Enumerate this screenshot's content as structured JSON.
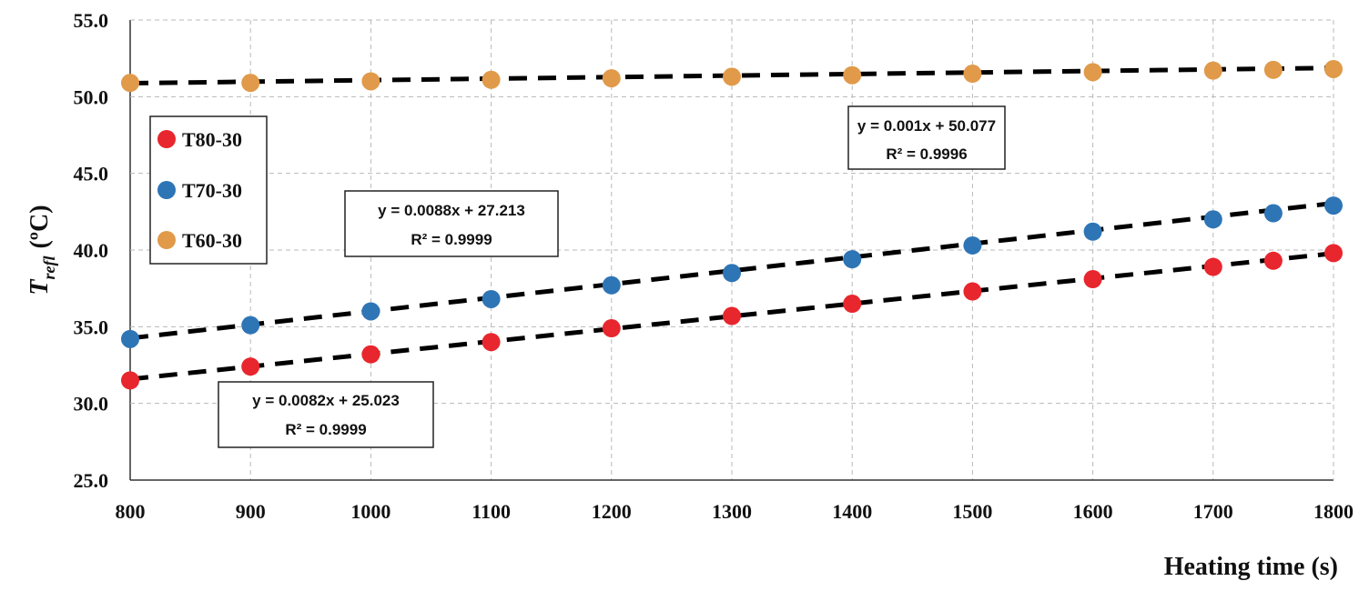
{
  "chart_data": {
    "type": "scatter",
    "xlabel": "Heating time (s)",
    "ylabel": {
      "main": "T",
      "subscript": "refl",
      "unit": "(ºC)"
    },
    "xlim": [
      800,
      1800
    ],
    "ylim": [
      25,
      55
    ],
    "x_ticks": [
      "800",
      "900",
      "1000",
      "1100",
      "1200",
      "1300",
      "1400",
      "1500",
      "1600",
      "1700",
      "1800"
    ],
    "y_ticks": [
      "25.0",
      "30.0",
      "35.0",
      "40.0",
      "45.0",
      "50.0",
      "55.0"
    ],
    "grid": true,
    "legend_position": "left",
    "series": [
      {
        "name": "T80-30",
        "color": "#e8262d",
        "x": [
          800,
          900,
          1000,
          1100,
          1200,
          1300,
          1400,
          1500,
          1600,
          1700,
          1750,
          1800
        ],
        "y": [
          31.5,
          32.4,
          33.2,
          34.0,
          34.9,
          35.7,
          36.5,
          37.3,
          38.1,
          38.9,
          39.3,
          39.8
        ],
        "trendline": {
          "slope": 0.0082,
          "intercept": 25.023,
          "equation": "y = 0.0082x  + 25.023",
          "r2": "R² = 0.9999"
        }
      },
      {
        "name": "T70-30",
        "color": "#2e75b6",
        "x": [
          800,
          900,
          1000,
          1100,
          1200,
          1300,
          1400,
          1500,
          1600,
          1700,
          1750,
          1800
        ],
        "y": [
          34.2,
          35.1,
          36.0,
          36.8,
          37.7,
          38.5,
          39.4,
          40.3,
          41.2,
          42.0,
          42.4,
          42.9
        ],
        "trendline": {
          "slope": 0.0088,
          "intercept": 27.213,
          "equation": "y = 0.0088x  + 27.213",
          "r2": "R² = 0.9999"
        }
      },
      {
        "name": "T60-30",
        "color": "#e09a4a",
        "x": [
          800,
          900,
          1000,
          1100,
          1200,
          1300,
          1400,
          1500,
          1600,
          1700,
          1750,
          1800
        ],
        "y": [
          50.9,
          50.9,
          51.0,
          51.1,
          51.2,
          51.3,
          51.4,
          51.5,
          51.6,
          51.7,
          51.75,
          51.8
        ],
        "trendline": {
          "slope": 0.001,
          "intercept": 50.077,
          "equation": "y = 0.001x  + 50.077",
          "r2": "R² = 0.9996"
        }
      }
    ]
  }
}
